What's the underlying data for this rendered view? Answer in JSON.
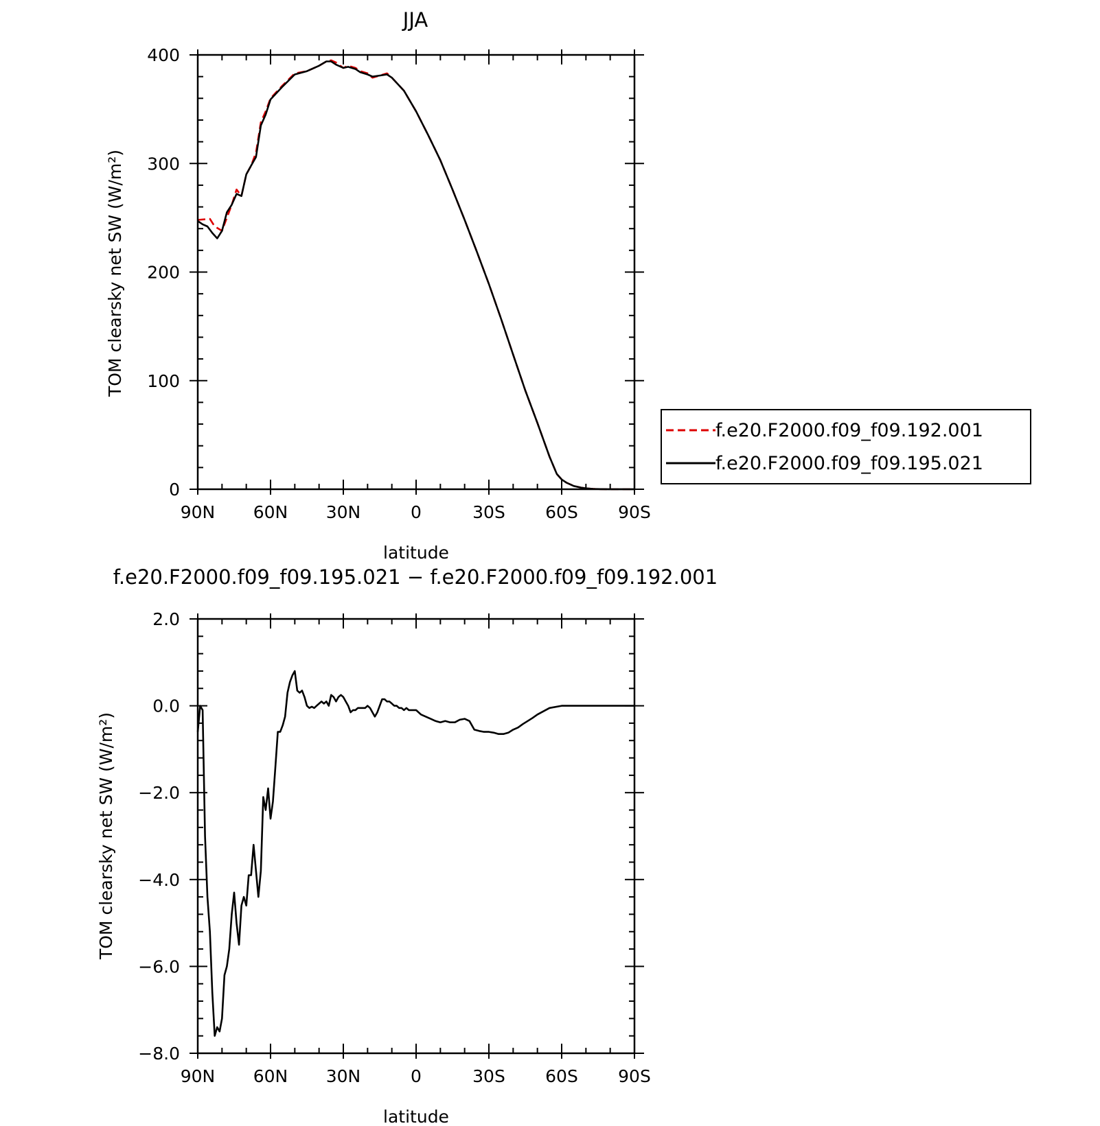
{
  "chart_data": [
    {
      "type": "line",
      "title": "JJA",
      "xlabel": "latitude",
      "ylabel": "TOM clearsky net SW (W/m²)",
      "xlim": [
        -90,
        90
      ],
      "ylim": [
        0,
        400
      ],
      "x_tick_values": [
        -90,
        -60,
        -30,
        0,
        30,
        60,
        90
      ],
      "x_tick_labels": [
        "90N",
        "60N",
        "30N",
        "0",
        "30S",
        "60S",
        "90S"
      ],
      "y_tick_values": [
        0,
        100,
        200,
        300,
        400
      ],
      "y_tick_labels": [
        "0",
        "100",
        "200",
        "300",
        "400"
      ],
      "legend_position": "right",
      "series": [
        {
          "name": "f.e20.F2000.f09_f09.192.001",
          "color": "#dd0000",
          "dash": "dashed",
          "x": [
            -90,
            -85,
            -83,
            -80,
            -78,
            -76,
            -74,
            -72,
            -70,
            -68,
            -66,
            -64,
            -62,
            -60,
            -55,
            -50,
            -45,
            -40,
            -37,
            -35,
            -33,
            -30,
            -28,
            -25,
            -23,
            -20,
            -18,
            -15,
            -12,
            -10,
            -5,
            0,
            5,
            10,
            15,
            20,
            25,
            30,
            35,
            40,
            45,
            50,
            55,
            58,
            60,
            62,
            65,
            68,
            70,
            73,
            76,
            80,
            85,
            90
          ],
          "y": [
            248,
            249,
            242,
            238,
            250,
            262,
            276,
            270,
            290,
            298,
            310,
            338,
            348,
            360,
            372,
            383,
            385,
            390,
            394,
            395,
            393,
            388,
            390,
            388,
            385,
            383,
            379,
            381,
            383,
            379,
            367,
            348,
            326,
            303,
            276,
            248,
            219,
            189,
            157,
            124,
            91,
            61,
            30,
            14,
            9,
            6,
            3,
            1.5,
            0.8,
            0.3,
            0.1,
            0,
            0,
            0
          ]
        },
        {
          "name": "f.e20.F2000.f09_f09.195.021",
          "color": "#000000",
          "dash": "solid",
          "x": [
            -90,
            -88,
            -86,
            -84,
            -82,
            -80,
            -78,
            -76,
            -74,
            -72,
            -70,
            -68,
            -66,
            -64,
            -62,
            -60,
            -55,
            -50,
            -45,
            -40,
            -37,
            -35,
            -33,
            -30,
            -28,
            -25,
            -23,
            -20,
            -18,
            -15,
            -12,
            -10,
            -5,
            0,
            5,
            10,
            15,
            20,
            25,
            30,
            35,
            40,
            45,
            50,
            55,
            58,
            60,
            62,
            65,
            68,
            70,
            73,
            76,
            80,
            85,
            90
          ],
          "y": [
            247,
            244,
            242,
            236,
            231,
            238,
            255,
            262,
            272,
            270,
            290,
            298,
            306,
            335,
            345,
            359,
            371,
            382,
            385,
            390,
            394,
            394,
            391,
            388,
            389,
            387,
            384,
            382,
            380,
            381,
            382,
            379,
            367,
            348,
            326,
            303,
            276,
            248,
            219,
            189,
            157,
            124,
            91,
            61,
            30,
            14,
            9,
            6,
            3,
            1.5,
            0.8,
            0.3,
            0.1,
            0,
            0,
            0
          ]
        }
      ]
    },
    {
      "type": "line",
      "title": "f.e20.F2000.f09_f09.195.021 − f.e20.F2000.f09_f09.192.001",
      "xlabel": "latitude",
      "ylabel": "TOM clearsky net SW (W/m²)",
      "xlim": [
        -90,
        90
      ],
      "ylim": [
        -8,
        2
      ],
      "x_tick_values": [
        -90,
        -60,
        -30,
        0,
        30,
        60,
        90
      ],
      "x_tick_labels": [
        "90N",
        "60N",
        "30N",
        "0",
        "30S",
        "60S",
        "90S"
      ],
      "y_tick_values": [
        -8,
        -6,
        -4,
        -2,
        0,
        2
      ],
      "y_tick_labels": [
        "−8.0",
        "−6.0",
        "−4.0",
        "−2.0",
        "0.0",
        "2.0"
      ],
      "series": [
        {
          "color": "#000000",
          "dash": "solid",
          "x": [
            -90,
            -89,
            -88,
            -87,
            -86,
            -85,
            -84,
            -83,
            -82,
            -81,
            -80,
            -79,
            -78,
            -77,
            -76,
            -75,
            -74,
            -73,
            -72,
            -71,
            -70,
            -69,
            -68,
            -67,
            -66,
            -65,
            -64,
            -63,
            -62,
            -61,
            -60,
            -59,
            -58,
            -57,
            -56,
            -55,
            -54,
            -53,
            -52,
            -51,
            -50,
            -49,
            -48,
            -47,
            -46,
            -45,
            -44,
            -43,
            -42,
            -41,
            -40,
            -39,
            -38,
            -37,
            -36,
            -35,
            -34,
            -33,
            -32,
            -31,
            -30,
            -29,
            -28,
            -27,
            -26,
            -25,
            -24,
            -23,
            -22,
            -21,
            -20,
            -19,
            -18,
            -17,
            -16,
            -15,
            -14,
            -13,
            -12,
            -11,
            -10,
            -9,
            -8,
            -7,
            -6,
            -5,
            -4,
            -3,
            -2,
            -1,
            0,
            2,
            4,
            6,
            8,
            10,
            12,
            14,
            16,
            18,
            20,
            22,
            24,
            26,
            28,
            30,
            32,
            34,
            36,
            38,
            40,
            42,
            44,
            46,
            48,
            50,
            55,
            60,
            65,
            70,
            75,
            80,
            85,
            90
          ],
          "y": [
            -0.6,
            0.0,
            -0.1,
            -3.0,
            -4.4,
            -5.2,
            -6.6,
            -7.6,
            -7.4,
            -7.5,
            -7.2,
            -6.2,
            -6.0,
            -5.6,
            -4.8,
            -4.3,
            -5.0,
            -5.5,
            -4.6,
            -4.4,
            -4.6,
            -3.9,
            -3.9,
            -3.2,
            -3.8,
            -4.4,
            -3.8,
            -2.1,
            -2.4,
            -1.9,
            -2.6,
            -2.2,
            -1.4,
            -0.6,
            -0.6,
            -0.45,
            -0.25,
            0.3,
            0.55,
            0.7,
            0.8,
            0.35,
            0.3,
            0.35,
            0.2,
            0.0,
            -0.05,
            -0.02,
            -0.05,
            0.0,
            0.05,
            0.1,
            0.05,
            0.1,
            0.0,
            0.25,
            0.2,
            0.1,
            0.2,
            0.25,
            0.2,
            0.1,
            0.0,
            -0.15,
            -0.1,
            -0.1,
            -0.05,
            -0.05,
            -0.05,
            -0.05,
            0.0,
            -0.05,
            -0.15,
            -0.25,
            -0.15,
            0.0,
            0.15,
            0.15,
            0.1,
            0.1,
            0.05,
            0.0,
            0.0,
            -0.05,
            -0.05,
            -0.1,
            -0.05,
            -0.1,
            -0.1,
            -0.1,
            -0.1,
            -0.2,
            -0.25,
            -0.3,
            -0.35,
            -0.38,
            -0.35,
            -0.38,
            -0.38,
            -0.32,
            -0.3,
            -0.35,
            -0.55,
            -0.58,
            -0.6,
            -0.6,
            -0.62,
            -0.65,
            -0.65,
            -0.62,
            -0.55,
            -0.5,
            -0.42,
            -0.35,
            -0.28,
            -0.2,
            -0.05,
            0.0,
            0.0,
            0.0,
            0.0,
            0.0,
            0.0,
            0.0
          ]
        }
      ]
    }
  ]
}
